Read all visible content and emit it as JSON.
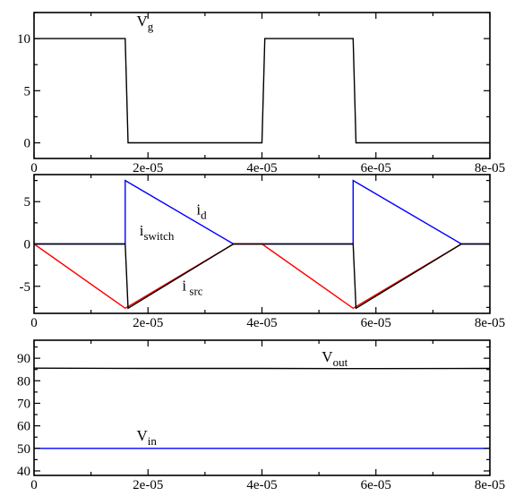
{
  "chart_data": [
    {
      "type": "line",
      "title": "",
      "xlabel": "",
      "ylabel": "",
      "xlim": [
        0,
        8e-05
      ],
      "ylim": [
        -1.5,
        12.5
      ],
      "x_ticks": [
        "0",
        "2e-05",
        "4e-05",
        "6e-05",
        "8e-05"
      ],
      "x_tick_values": [
        0,
        2e-05,
        4e-05,
        6e-05,
        8e-05
      ],
      "y_ticks": [
        "0",
        "5",
        "10"
      ],
      "y_tick_values": [
        0,
        5,
        10
      ],
      "series": [
        {
          "color": "#000000",
          "points": [
            [
              0,
              10
            ],
            [
              1.6e-05,
              10
            ],
            [
              1.65e-05,
              0
            ],
            [
              4e-05,
              0
            ],
            [
              4.05e-05,
              10
            ],
            [
              5.6e-05,
              10
            ],
            [
              5.65e-05,
              0
            ],
            [
              8e-05,
              0
            ]
          ]
        }
      ],
      "annotations": [
        {
          "text": "V",
          "sub": "g",
          "x": 1.8e-05,
          "y": 11.2
        }
      ]
    },
    {
      "type": "line",
      "title": "",
      "xlabel": "",
      "ylabel": "",
      "xlim": [
        0,
        8e-05
      ],
      "ylim": [
        -8.2,
        8.2
      ],
      "x_ticks": [
        "0",
        "2e-05",
        "4e-05",
        "6e-05",
        "8e-05"
      ],
      "x_tick_values": [
        0,
        2e-05,
        4e-05,
        6e-05,
        8e-05
      ],
      "y_ticks": [
        "-5",
        "0",
        "5"
      ],
      "y_tick_values": [
        -5,
        0,
        5
      ],
      "series": [
        {
          "color": "#0000ff",
          "points": [
            [
              0,
              0
            ],
            [
              1.6e-05,
              0
            ],
            [
              1.6e-05,
              7.5
            ],
            [
              3.5e-05,
              0
            ],
            [
              5.6e-05,
              0
            ],
            [
              5.6e-05,
              7.5
            ],
            [
              7.5e-05,
              0
            ],
            [
              8e-05,
              0
            ]
          ]
        },
        {
          "color": "#ff0000",
          "points": [
            [
              0,
              0
            ],
            [
              1.6e-05,
              -7.6
            ],
            [
              3.5e-05,
              0
            ],
            [
              4e-05,
              0
            ],
            [
              5.6e-05,
              -7.6
            ],
            [
              7.5e-05,
              0
            ]
          ]
        },
        {
          "color": "#000000",
          "points": [
            [
              0,
              0
            ],
            [
              1.6e-05,
              0
            ],
            [
              1.65e-05,
              -7.6
            ],
            [
              3.5e-05,
              0
            ],
            [
              5.6e-05,
              0
            ],
            [
              5.65e-05,
              -7.6
            ],
            [
              7.5e-05,
              0
            ],
            [
              8e-05,
              0
            ]
          ]
        }
      ],
      "annotations": [
        {
          "text": "i",
          "sub": "d",
          "x": 2.85e-05,
          "y": 3.5
        },
        {
          "text": "i",
          "sub": "switch",
          "x": 1.85e-05,
          "y": 1.0
        },
        {
          "text": "i",
          "sub": " src",
          "x": 2.6e-05,
          "y": -5.5
        }
      ]
    },
    {
      "type": "line",
      "title": "",
      "xlabel": "",
      "ylabel": "",
      "xlim": [
        0,
        8e-05
      ],
      "ylim": [
        38,
        98
      ],
      "x_ticks": [
        "0",
        "2e-05",
        "4e-05",
        "6e-05",
        "8e-05"
      ],
      "x_tick_values": [
        0,
        2e-05,
        4e-05,
        6e-05,
        8e-05
      ],
      "y_ticks": [
        "40",
        "50",
        "60",
        "70",
        "80",
        "90"
      ],
      "y_tick_values": [
        40,
        50,
        60,
        70,
        80,
        90
      ],
      "series": [
        {
          "color": "#000000",
          "points": [
            [
              0,
              85.6
            ],
            [
              2e-05,
              85.5
            ],
            [
              4e-05,
              85.5
            ],
            [
              6e-05,
              85.4
            ],
            [
              8e-05,
              85.5
            ]
          ]
        },
        {
          "color": "#0000ff",
          "points": [
            [
              0,
              50
            ],
            [
              8e-05,
              50
            ]
          ]
        }
      ],
      "annotations": [
        {
          "text": "V",
          "sub": "out",
          "x": 5.05e-05,
          "y": 88.5
        },
        {
          "text": "V",
          "sub": "in",
          "x": 1.8e-05,
          "y": 53.5
        }
      ]
    }
  ]
}
